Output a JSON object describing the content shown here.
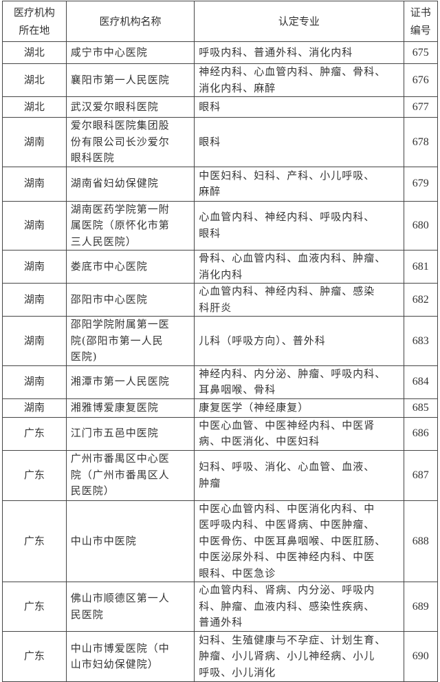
{
  "headers": {
    "location": [
      "医疗机构",
      "所在地"
    ],
    "name": "医疗机构名称",
    "specialty": "认定专业",
    "cert": [
      "证书",
      "编号"
    ]
  },
  "rows": [
    {
      "location": "湖北",
      "name": [
        "咸宁市中心医院"
      ],
      "specialty": [
        "呼吸内科、普通外科、消化内科"
      ],
      "cert": "675",
      "h": 32
    },
    {
      "location": "湖北",
      "name": [
        "襄阳市第一人民医院"
      ],
      "specialty": [
        "神经内科、心血管内科、肿瘤、骨科、",
        "消化内科、麻醉"
      ],
      "cert": "676",
      "h": 48
    },
    {
      "location": "湖北",
      "name": [
        "武汉爱尔眼科医院"
      ],
      "specialty": [
        "眼科"
      ],
      "cert": "677",
      "h": 30
    },
    {
      "location": "湖南",
      "name": [
        "爱尔眼科医院集团股",
        "份有限公司长沙爱尔",
        "眼科医院"
      ],
      "specialty": [
        "眼科"
      ],
      "cert": "678",
      "h": 70
    },
    {
      "location": "湖南",
      "name": [
        "湖南省妇幼保健院"
      ],
      "specialty": [
        "中医妇科、妇科、产科、小儿呼吸、",
        "麻醉"
      ],
      "cert": "679",
      "h": 50
    },
    {
      "location": "湖南",
      "name": [
        "湖南医药学院第一附",
        "属医院（原怀化市第",
        "三人民医院）"
      ],
      "specialty": [
        "心血管内科、神经内科、呼吸内科、",
        "眼科"
      ],
      "cert": "680",
      "h": 67
    },
    {
      "location": "湖南",
      "name": [
        "娄底市中心医院"
      ],
      "specialty": [
        "骨科、心血管内科、血液内科、肿瘤、",
        "消化内科"
      ],
      "cert": "681",
      "h": 48
    },
    {
      "location": "湖南",
      "name": [
        "邵阳市中心医院"
      ],
      "specialty": [
        "心血管内科、神经内科、肿瘤、感染",
        "科肝炎"
      ],
      "cert": "682",
      "h": 48
    },
    {
      "location": "湖南",
      "name": [
        "邵阳学院附属第一医",
        "院(邵阳市第一人民",
        "医院)"
      ],
      "specialty": [
        "儿科（呼吸方向）、普外科"
      ],
      "cert": "683",
      "h": 70
    },
    {
      "location": "湖南",
      "name": [
        "湘潭市第一人民医院"
      ],
      "specialty": [
        "神经内科、内分泌、肿瘤、呼吸内科、",
        "耳鼻咽喉、骨科"
      ],
      "cert": "684",
      "h": 47
    },
    {
      "location": "湖南",
      "name": [
        "湘雅博爱康复医院"
      ],
      "specialty": [
        "康复医学（神经康复）"
      ],
      "cert": "685",
      "h": 27
    },
    {
      "location": "广东",
      "name": [
        "江门市五邑中医院"
      ],
      "specialty": [
        "中医心血管、中医神经内科、中医肾",
        "病、中医消化、中医妇科"
      ],
      "cert": "686",
      "h": 48
    },
    {
      "location": "广东",
      "name": [
        "广州市番禺区中心医",
        "院（广州市番禺区人",
        "民医院）"
      ],
      "specialty": [
        "妇科、呼吸、消化、心血管、血液、",
        "肿瘤"
      ],
      "cert": "687",
      "h": 73
    },
    {
      "location": "广东",
      "name": [
        "中山市中医院"
      ],
      "specialty": [
        "中医心血管内科、中医消化内科、中",
        "医呼吸内科、中医肾病、中医肿瘤、",
        "中医骨伤、中医耳鼻咽喉、中医肛肠、",
        "中医泌尿外科、中医神经内科、中医",
        "眼科、中医急诊"
      ],
      "cert": "688",
      "h": 112
    },
    {
      "location": "广东",
      "name": [
        "佛山市顺德区第一人",
        "民医院"
      ],
      "specialty": [
        "心血管内科、肾病、内分泌、呼吸内",
        "科、肿瘤、血液内科、感染性疾病、",
        "普通外科"
      ],
      "cert": "689",
      "h": 72
    },
    {
      "location": "广东",
      "name": [
        "中山市博爱医院（中",
        "山市妇幼保健院）"
      ],
      "specialty": [
        "妇科、生殖健康与不孕症、计划生育、",
        "肿瘤、小儿肾病、小儿神经病、小儿",
        "呼吸、小儿消化"
      ],
      "cert": "690",
      "h": 73
    }
  ]
}
